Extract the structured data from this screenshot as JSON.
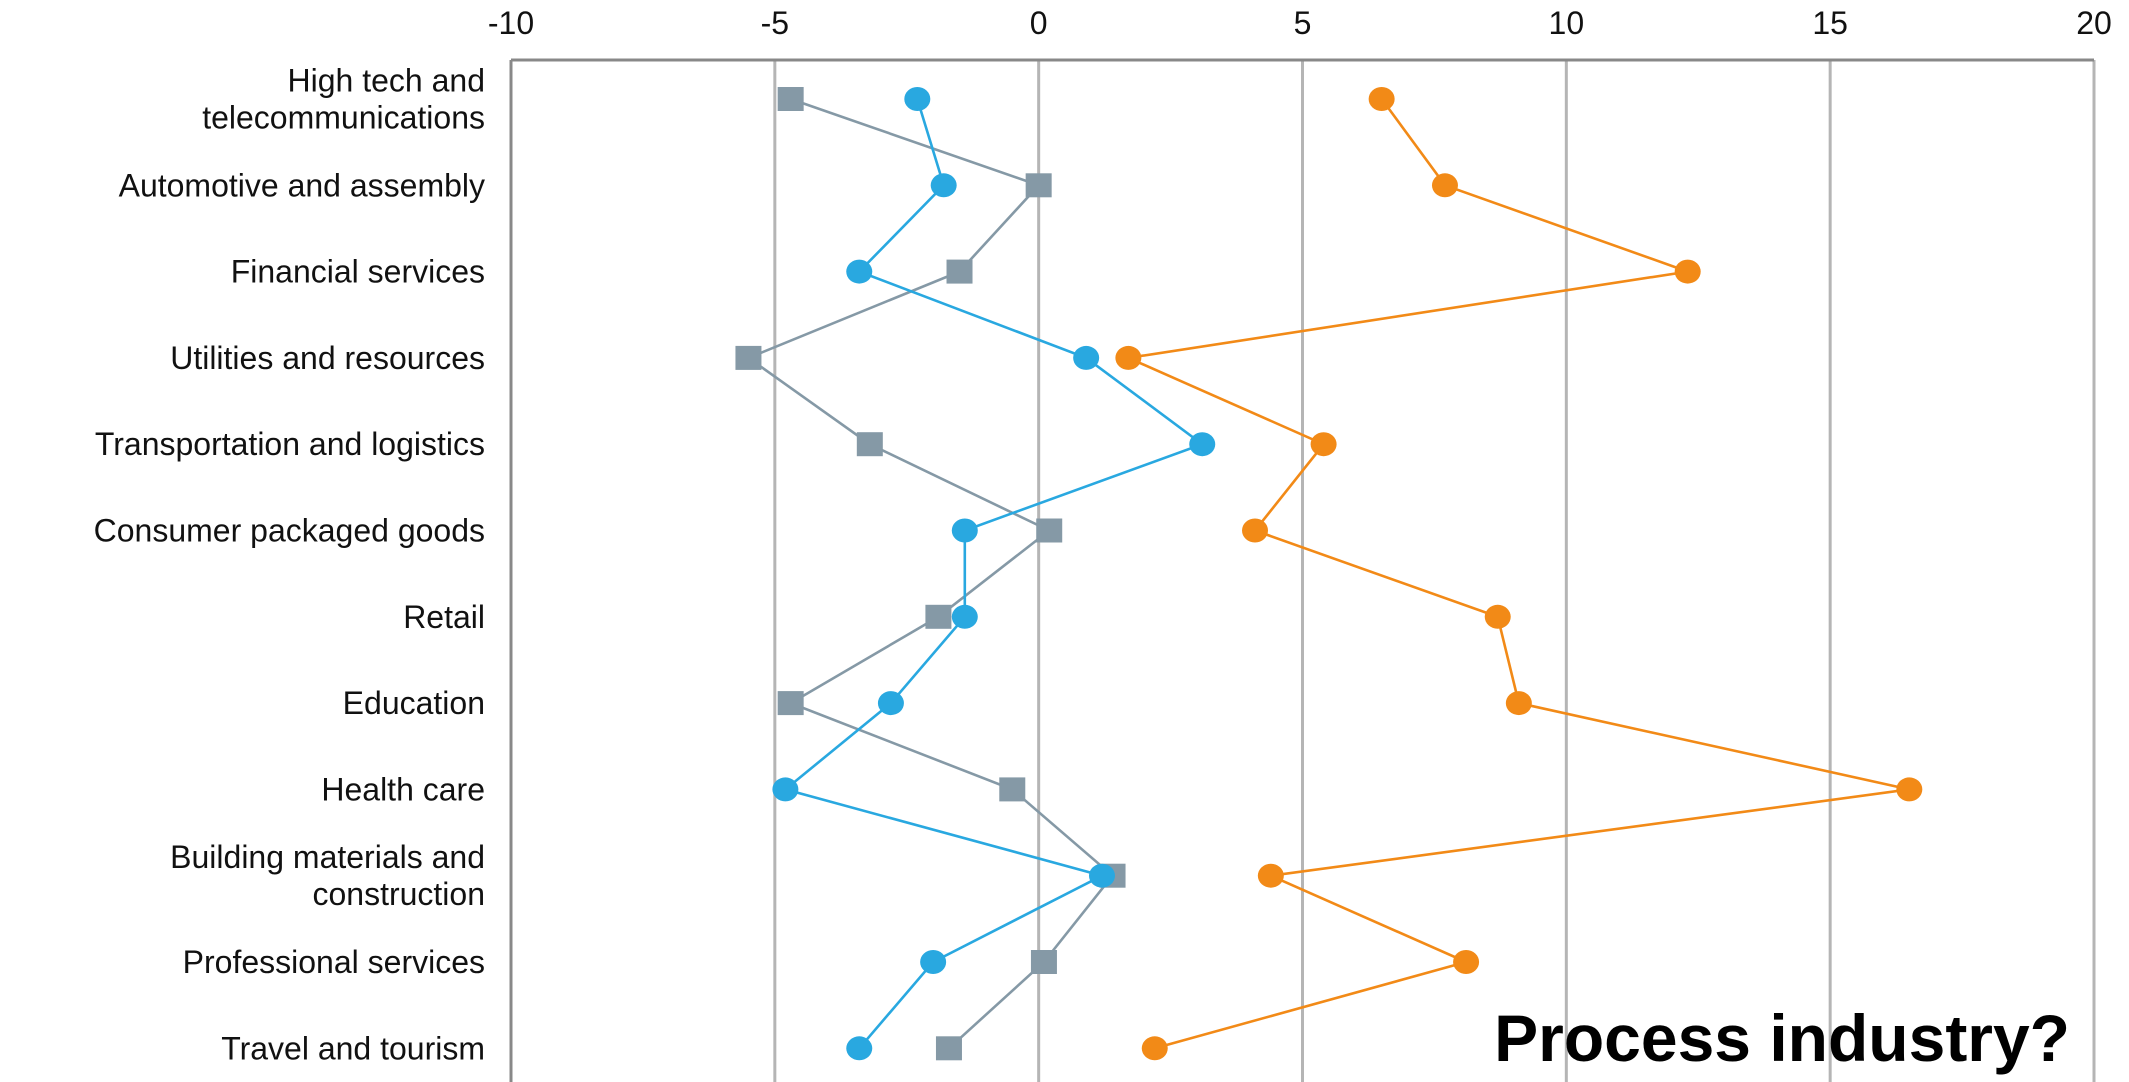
{
  "chart_data": {
    "type": "line",
    "orientation": "horizontal",
    "title": "",
    "xlabel": "",
    "ylabel": "",
    "xlim": [
      -10,
      20
    ],
    "x_ticks": [
      "-10",
      "-5",
      "0",
      "5",
      "10",
      "15",
      "20"
    ],
    "x_axis_position": "top",
    "grid": "vertical",
    "legend": "none",
    "categories": [
      [
        "High tech and",
        "telecommunications"
      ],
      [
        "Automotive and assembly"
      ],
      [
        "Financial services"
      ],
      [
        "Utilities and resources"
      ],
      [
        "Transportation and logistics"
      ],
      [
        "Consumer packaged goods"
      ],
      [
        "Retail"
      ],
      [
        "Education"
      ],
      [
        "Health care"
      ],
      [
        "Building materials and",
        "construction"
      ],
      [
        "Professional services"
      ],
      [
        "Travel and tourism"
      ]
    ],
    "series": [
      {
        "marker": "square",
        "color": "#8599A6",
        "values": [
          -4.7,
          0.0,
          -1.5,
          -5.5,
          -3.2,
          0.2,
          -1.9,
          -4.7,
          -0.5,
          1.4,
          0.1,
          -1.7
        ]
      },
      {
        "marker": "circle",
        "color": "#29A8E0",
        "values": [
          -2.3,
          -1.8,
          -3.4,
          0.9,
          3.1,
          -1.4,
          -1.4,
          -2.8,
          -4.8,
          1.2,
          -2.0,
          -3.4
        ]
      },
      {
        "marker": "circle",
        "color": "#F28A17",
        "values": [
          6.5,
          7.7,
          12.3,
          1.7,
          5.4,
          4.1,
          8.7,
          9.1,
          16.5,
          4.4,
          8.1,
          2.2
        ]
      }
    ],
    "annotation": "Process industry?",
    "colors": {
      "grid": "#B5B5B5",
      "axis": "#888888"
    }
  }
}
